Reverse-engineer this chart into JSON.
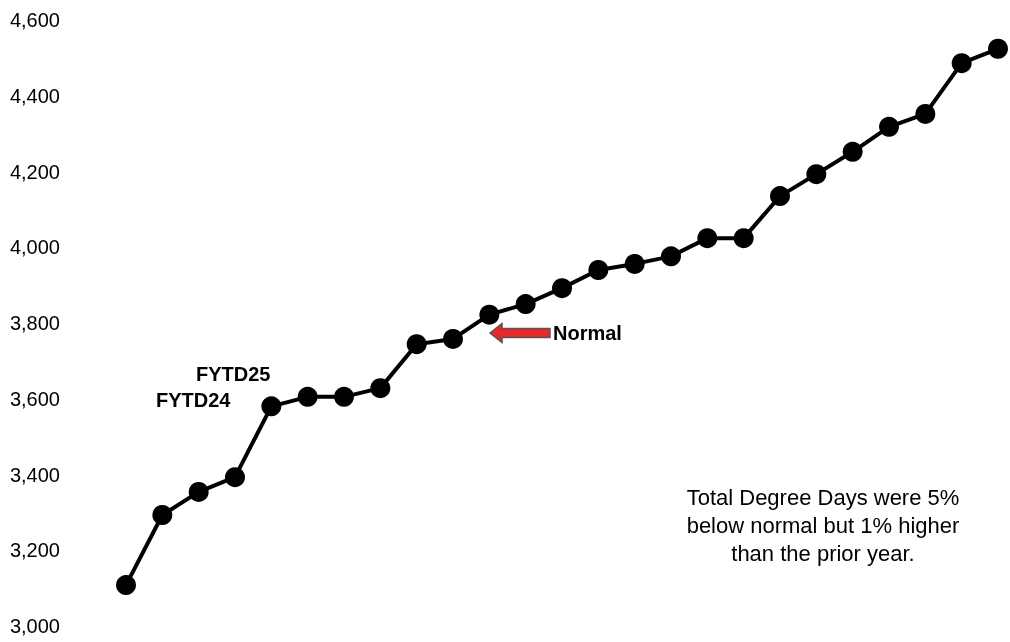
{
  "chart_data": {
    "type": "line",
    "categories": [
      null,
      null,
      null,
      null,
      null,
      null,
      null,
      null,
      null,
      null,
      null,
      null,
      null,
      null,
      null,
      null,
      null,
      null,
      null,
      null,
      null,
      null,
      null,
      null,
      null
    ],
    "series": [
      {
        "color": "#000000",
        "values": [
          3108,
          3293,
          3354,
          3393,
          3580,
          3605,
          3605,
          3628,
          3744,
          3758,
          3822,
          3850,
          3892,
          3940,
          3956,
          3976,
          4024,
          4024,
          4135,
          4193,
          4252,
          4318,
          4352,
          4486,
          4524
        ]
      }
    ],
    "ylim": [
      3000,
      4600
    ],
    "yticks": [
      {
        "value": 3000,
        "label": "3,000"
      },
      {
        "value": 3200,
        "label": "3,200"
      },
      {
        "value": 3400,
        "label": "3,400"
      },
      {
        "value": 3600,
        "label": "3,600"
      },
      {
        "value": 3800,
        "label": "3,800"
      },
      {
        "value": 4000,
        "label": "4,000"
      },
      {
        "value": 4200,
        "label": "4,200"
      },
      {
        "value": 4400,
        "label": "4,400"
      },
      {
        "value": 4600,
        "label": "4,600"
      }
    ],
    "annotations": [
      "FYTD25",
      "FYTD24",
      "Normal",
      "Total Degree Days were 5%\nbelow normal but 1% higher\nthan the prior year."
    ],
    "marker": "circle",
    "line_style": "solid",
    "grid": false
  }
}
